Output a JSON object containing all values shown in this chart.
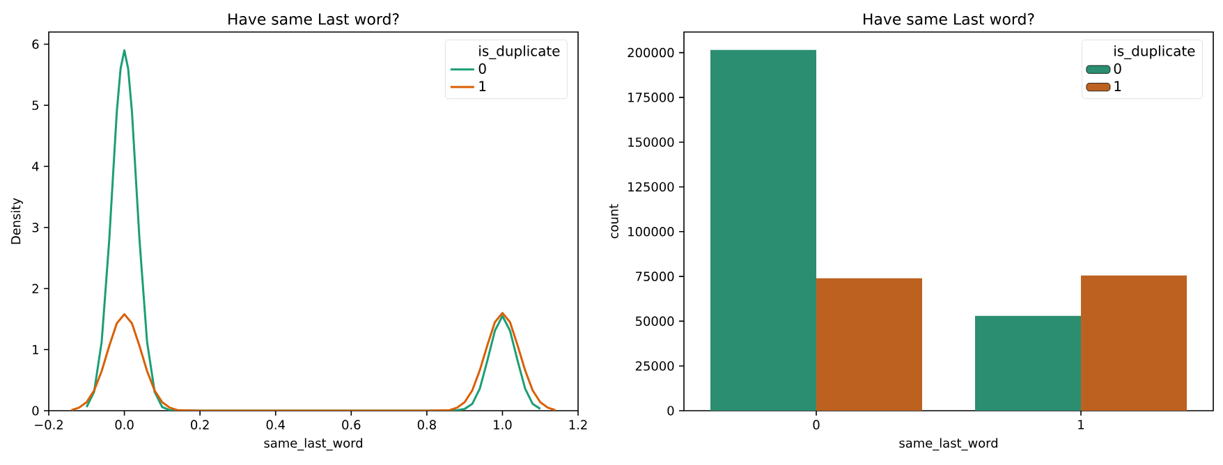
{
  "chart_data": [
    {
      "type": "line",
      "title": "Have same Last word?",
      "xlabel": "same_last_word",
      "ylabel": "Density",
      "legend_title": "is_duplicate",
      "legend": "top right",
      "xlim": [
        -0.2,
        1.2
      ],
      "xticks": [
        {
          "value": -0.2,
          "label": "−0.2"
        },
        {
          "value": 0,
          "label": "0.0"
        },
        {
          "value": 0.2,
          "label": "0.2"
        },
        {
          "value": 0.4,
          "label": "0.4"
        },
        {
          "value": 0.6,
          "label": "0.6"
        },
        {
          "value": 0.8,
          "label": "0.8"
        },
        {
          "value": 1,
          "label": "1.0"
        },
        {
          "value": 1.2,
          "label": "1.2"
        }
      ],
      "ylim": [
        0,
        6.2
      ],
      "yticks": [
        0,
        1,
        2,
        3,
        4,
        5,
        6
      ],
      "series": [
        {
          "name": "0",
          "color": "#1b9e77",
          "x": [
            -0.1,
            -0.08,
            -0.06,
            -0.04,
            -0.02,
            -0.01,
            0,
            0.01,
            0.02,
            0.04,
            0.06,
            0.08,
            0.1,
            0.12,
            0.2,
            0.4,
            0.6,
            0.8,
            0.88,
            0.9,
            0.92,
            0.94,
            0.96,
            0.98,
            1.0,
            1.02,
            1.04,
            1.06,
            1.08,
            1.1
          ],
          "values": [
            0.06,
            0.31,
            1.13,
            2.8,
            4.9,
            5.6,
            5.9,
            5.6,
            4.9,
            2.8,
            1.13,
            0.31,
            0.06,
            0.01,
            0,
            0,
            0,
            0,
            0.01,
            0.03,
            0.11,
            0.36,
            0.82,
            1.31,
            1.55,
            1.31,
            0.82,
            0.36,
            0.11,
            0.03
          ]
        },
        {
          "name": "1",
          "color": "#d95f02",
          "x": [
            -0.14,
            -0.12,
            -0.1,
            -0.08,
            -0.06,
            -0.04,
            -0.02,
            0,
            0.02,
            0.04,
            0.06,
            0.08,
            0.1,
            0.12,
            0.14,
            0.2,
            0.4,
            0.6,
            0.8,
            0.86,
            0.88,
            0.9,
            0.92,
            0.94,
            0.96,
            0.98,
            1.0,
            1.02,
            1.04,
            1.06,
            1.08,
            1.1,
            1.12,
            1.14
          ],
          "values": [
            0.01,
            0.05,
            0.14,
            0.33,
            0.65,
            1.06,
            1.43,
            1.58,
            1.43,
            1.06,
            0.65,
            0.33,
            0.14,
            0.05,
            0.01,
            0,
            0,
            0,
            0,
            0.01,
            0.05,
            0.14,
            0.33,
            0.66,
            1.07,
            1.45,
            1.6,
            1.45,
            1.07,
            0.66,
            0.33,
            0.14,
            0.05,
            0.01
          ]
        }
      ]
    },
    {
      "type": "bar",
      "title": "Have same Last word?",
      "xlabel": "same_last_word",
      "ylabel": "count",
      "legend_title": "is_duplicate",
      "legend": "top right",
      "categories": [
        "0",
        "1"
      ],
      "ylim": [
        0,
        211500
      ],
      "yticks": [
        0,
        25000,
        50000,
        75000,
        100000,
        125000,
        150000,
        175000,
        200000
      ],
      "series": [
        {
          "name": "0",
          "color": "#2b8e70",
          "values": [
            201500,
            53000
          ]
        },
        {
          "name": "1",
          "color": "#bd6120",
          "values": [
            74000,
            75500
          ]
        }
      ]
    }
  ]
}
